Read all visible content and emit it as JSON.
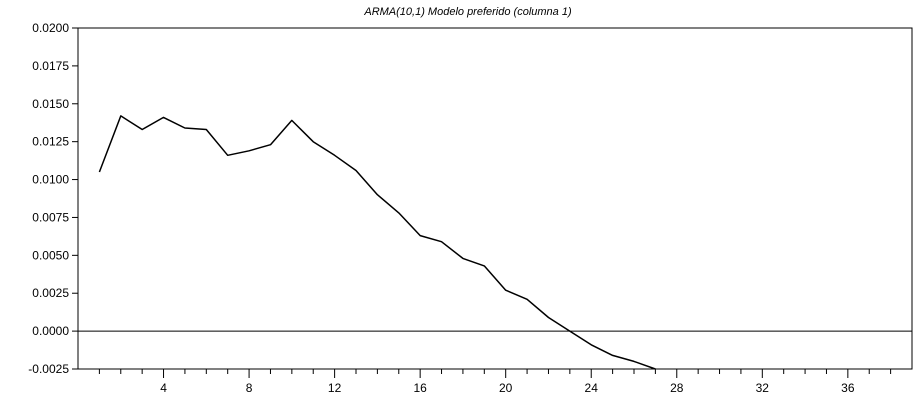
{
  "chart_data": {
    "type": "line",
    "title": "ARMA(10,1) Modelo preferido (columna 1)",
    "xlabel": "",
    "ylabel": "",
    "xlim": [
      0,
      39
    ],
    "ylim": [
      -0.0025,
      0.02
    ],
    "x_ticks": [
      4,
      8,
      12,
      16,
      20,
      24,
      28,
      32,
      36
    ],
    "x_minor_ticks": [
      1,
      2,
      3,
      5,
      6,
      7,
      9,
      10,
      11,
      13,
      14,
      15,
      17,
      18,
      19,
      21,
      22,
      23,
      25,
      26,
      27,
      29,
      30,
      31,
      33,
      34,
      35,
      37,
      38
    ],
    "y_ticks": [
      "0.0200",
      "0.0175",
      "0.0150",
      "0.0125",
      "0.0100",
      "0.0075",
      "0.0050",
      "0.0025",
      "0.0000",
      "-0.0025"
    ],
    "zero_line": 0,
    "grid": false,
    "legend": "none",
    "line_color": "#000000",
    "series": [
      {
        "x": [
          1,
          2,
          3,
          4,
          5,
          6,
          7,
          8,
          9,
          10,
          11,
          12,
          13,
          14,
          15,
          16,
          17,
          18,
          19,
          20,
          21,
          22,
          23,
          24,
          25,
          26,
          27
        ],
        "values": [
          0.0105,
          0.0142,
          0.0133,
          0.0141,
          0.0134,
          0.0133,
          0.0116,
          0.0119,
          0.0123,
          0.0139,
          0.0125,
          0.0116,
          0.0106,
          0.009,
          0.0078,
          0.0063,
          0.0059,
          0.0048,
          0.0043,
          0.0027,
          0.0021,
          0.0009,
          0.0,
          -0.0009,
          -0.0016,
          -0.002,
          -0.0025
        ]
      }
    ]
  }
}
